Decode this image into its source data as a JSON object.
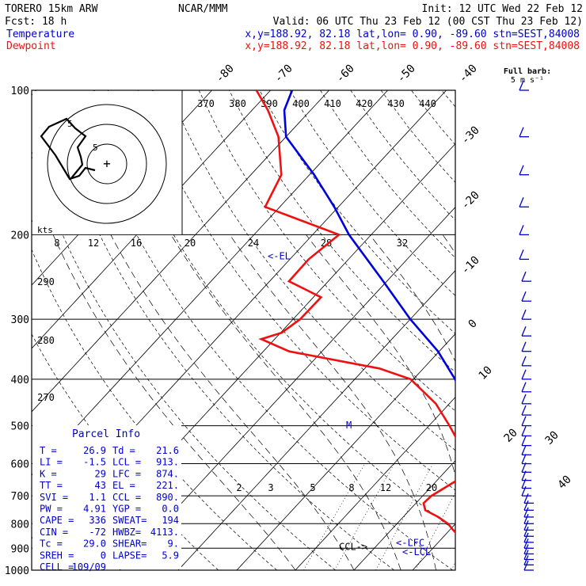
{
  "header": {
    "model": "TORERO  15km ARW",
    "org": "NCAR/MMM",
    "init": "Init: 12 UTC Wed 22 Feb 12",
    "fcst": "Fcst:   18 h",
    "valid": "Valid: 06 UTC Thu 23 Feb 12 (00 CST Thu 23 Feb 12)",
    "temp_label": "Temperature",
    "dew_label": "Dewpoint",
    "temp_loc": "x,y=188.92, 82.18   lat,lon=  0.90, -89.60   stn=SEST,84008",
    "dew_loc": "x,y=188.92, 82.18   lat,lon=  0.90, -89.60   stn=SEST,84008",
    "barb_title": "Full barb:",
    "barb_units": "5 m s⁻¹"
  },
  "colors": {
    "temperature": "#0000dd",
    "dewpoint": "#ee1111",
    "header_blue": "#0000cc",
    "header_red": "#ee1111",
    "axes": "#000000"
  },
  "pressure_labels": [
    "100",
    "200",
    "300",
    "400",
    "500",
    "600",
    "700",
    "800",
    "900",
    "1000"
  ],
  "isotherm_labels": [
    "-80",
    "-70",
    "-60",
    "-50",
    "-40",
    "-30",
    "-20",
    "-10",
    "0",
    "10",
    "20",
    "30",
    "40"
  ],
  "theta_labels": [
    "370",
    "380",
    "390",
    "400",
    "410",
    "420",
    "430",
    "440"
  ],
  "hodograph": {
    "kts_label": "kts",
    "speed_labels": [
      "8",
      "12",
      "16",
      "20",
      "24",
      "28",
      "32"
    ],
    "ring_labels": [
      "5",
      "5"
    ]
  },
  "mixing_ratio_labels": [
    "2",
    "3",
    "5",
    "8",
    "12",
    "20"
  ],
  "theta_side_labels": [
    "290",
    "280",
    "270"
  ],
  "annotations": {
    "el": "<-EL",
    "lfc": "<-LFC",
    "lcl": "<-LCL",
    "ccl": "CCL->",
    "marker": "M"
  },
  "parcel_info": {
    "title": "Parcel Info",
    "rows": [
      [
        "T   =",
        "26.9",
        "Td =",
        "21.6"
      ],
      [
        "LI  =",
        "-1.5",
        "LCL =",
        "913."
      ],
      [
        "K   =",
        "29",
        "LFC =",
        "874."
      ],
      [
        "TT  =",
        "43",
        "EL  =",
        "221."
      ],
      [
        "SVI =",
        "1.1",
        "CCL =",
        "890."
      ],
      [
        "PW  =",
        "4.91",
        "YGP =",
        "0.0"
      ],
      [
        "CAPE =",
        "336",
        "SWEAT=",
        "194"
      ],
      [
        "CIN  =",
        "-72",
        "HWBZ=",
        "4113."
      ],
      [
        "Tc  =",
        "29.0",
        "SHEAR=",
        "9."
      ],
      [
        "SREH =",
        "0",
        "LAPSE=",
        "5.9"
      ],
      [
        "CELL =",
        "109/09",
        "",
        ""
      ]
    ]
  },
  "chart_data": {
    "type": "line",
    "title": "",
    "xlabel": "",
    "ylabel": "",
    "y_scale": "log-pressure",
    "ylim": [
      1000,
      100
    ],
    "series": [
      {
        "name": "Temperature",
        "pressure_hPa": [
          1000,
          975,
          950,
          925,
          900,
          875,
          850,
          825,
          800,
          775,
          750,
          725,
          700,
          650,
          600,
          550,
          500,
          450,
          400,
          350,
          300,
          250,
          200,
          175,
          150,
          125,
          110,
          100
        ],
        "temperature_C": [
          26.9,
          23.2,
          21.5,
          20.6,
          19.6,
          18.6,
          17.2,
          16.5,
          16.4,
          17.6,
          16.7,
          15.3,
          13.9,
          10.3,
          6.1,
          1.7,
          -2.7,
          -7.1,
          -12.9,
          -20.2,
          -30.0,
          -40.6,
          -53.8,
          -60.7,
          -69.2,
          -80.0,
          -84.5,
          -86.3
        ]
      },
      {
        "name": "Dewpoint",
        "pressure_hPa": [
          1000,
          975,
          950,
          925,
          900,
          875,
          850,
          825,
          800,
          775,
          750,
          725,
          700,
          650,
          600,
          550,
          500,
          450,
          400,
          380,
          350,
          330,
          320,
          300,
          270,
          250,
          225,
          200,
          175,
          150,
          125,
          110,
          100
        ],
        "dewpoint_C": [
          21.6,
          21.8,
          20.8,
          19.4,
          18.5,
          16.0,
          12.6,
          10.6,
          8.7,
          6.0,
          2.7,
          1.3,
          1.5,
          3.4,
          3.6,
          -1.5,
          -6.5,
          -12.3,
          -20.5,
          -27.5,
          -45.6,
          -52.3,
          -49.8,
          -48.8,
          -48.7,
          -56.7,
          -56.8,
          -55.5,
          -72.5,
          -74.8,
          -81.3,
          -87.3,
          -92.4
        ]
      }
    ],
    "parcel_levels_hPa": {
      "LCL": 913,
      "LFC": 874,
      "EL": 221,
      "CCL": 890
    },
    "wind_barbs_pressure_hPa": [
      1000,
      975,
      950,
      925,
      900,
      875,
      850,
      825,
      800,
      775,
      750,
      725,
      700,
      675,
      650,
      625,
      600,
      575,
      550,
      525,
      500,
      475,
      450,
      425,
      400,
      375,
      350,
      325,
      300,
      275,
      250,
      225,
      200,
      175,
      150,
      125,
      100
    ]
  }
}
